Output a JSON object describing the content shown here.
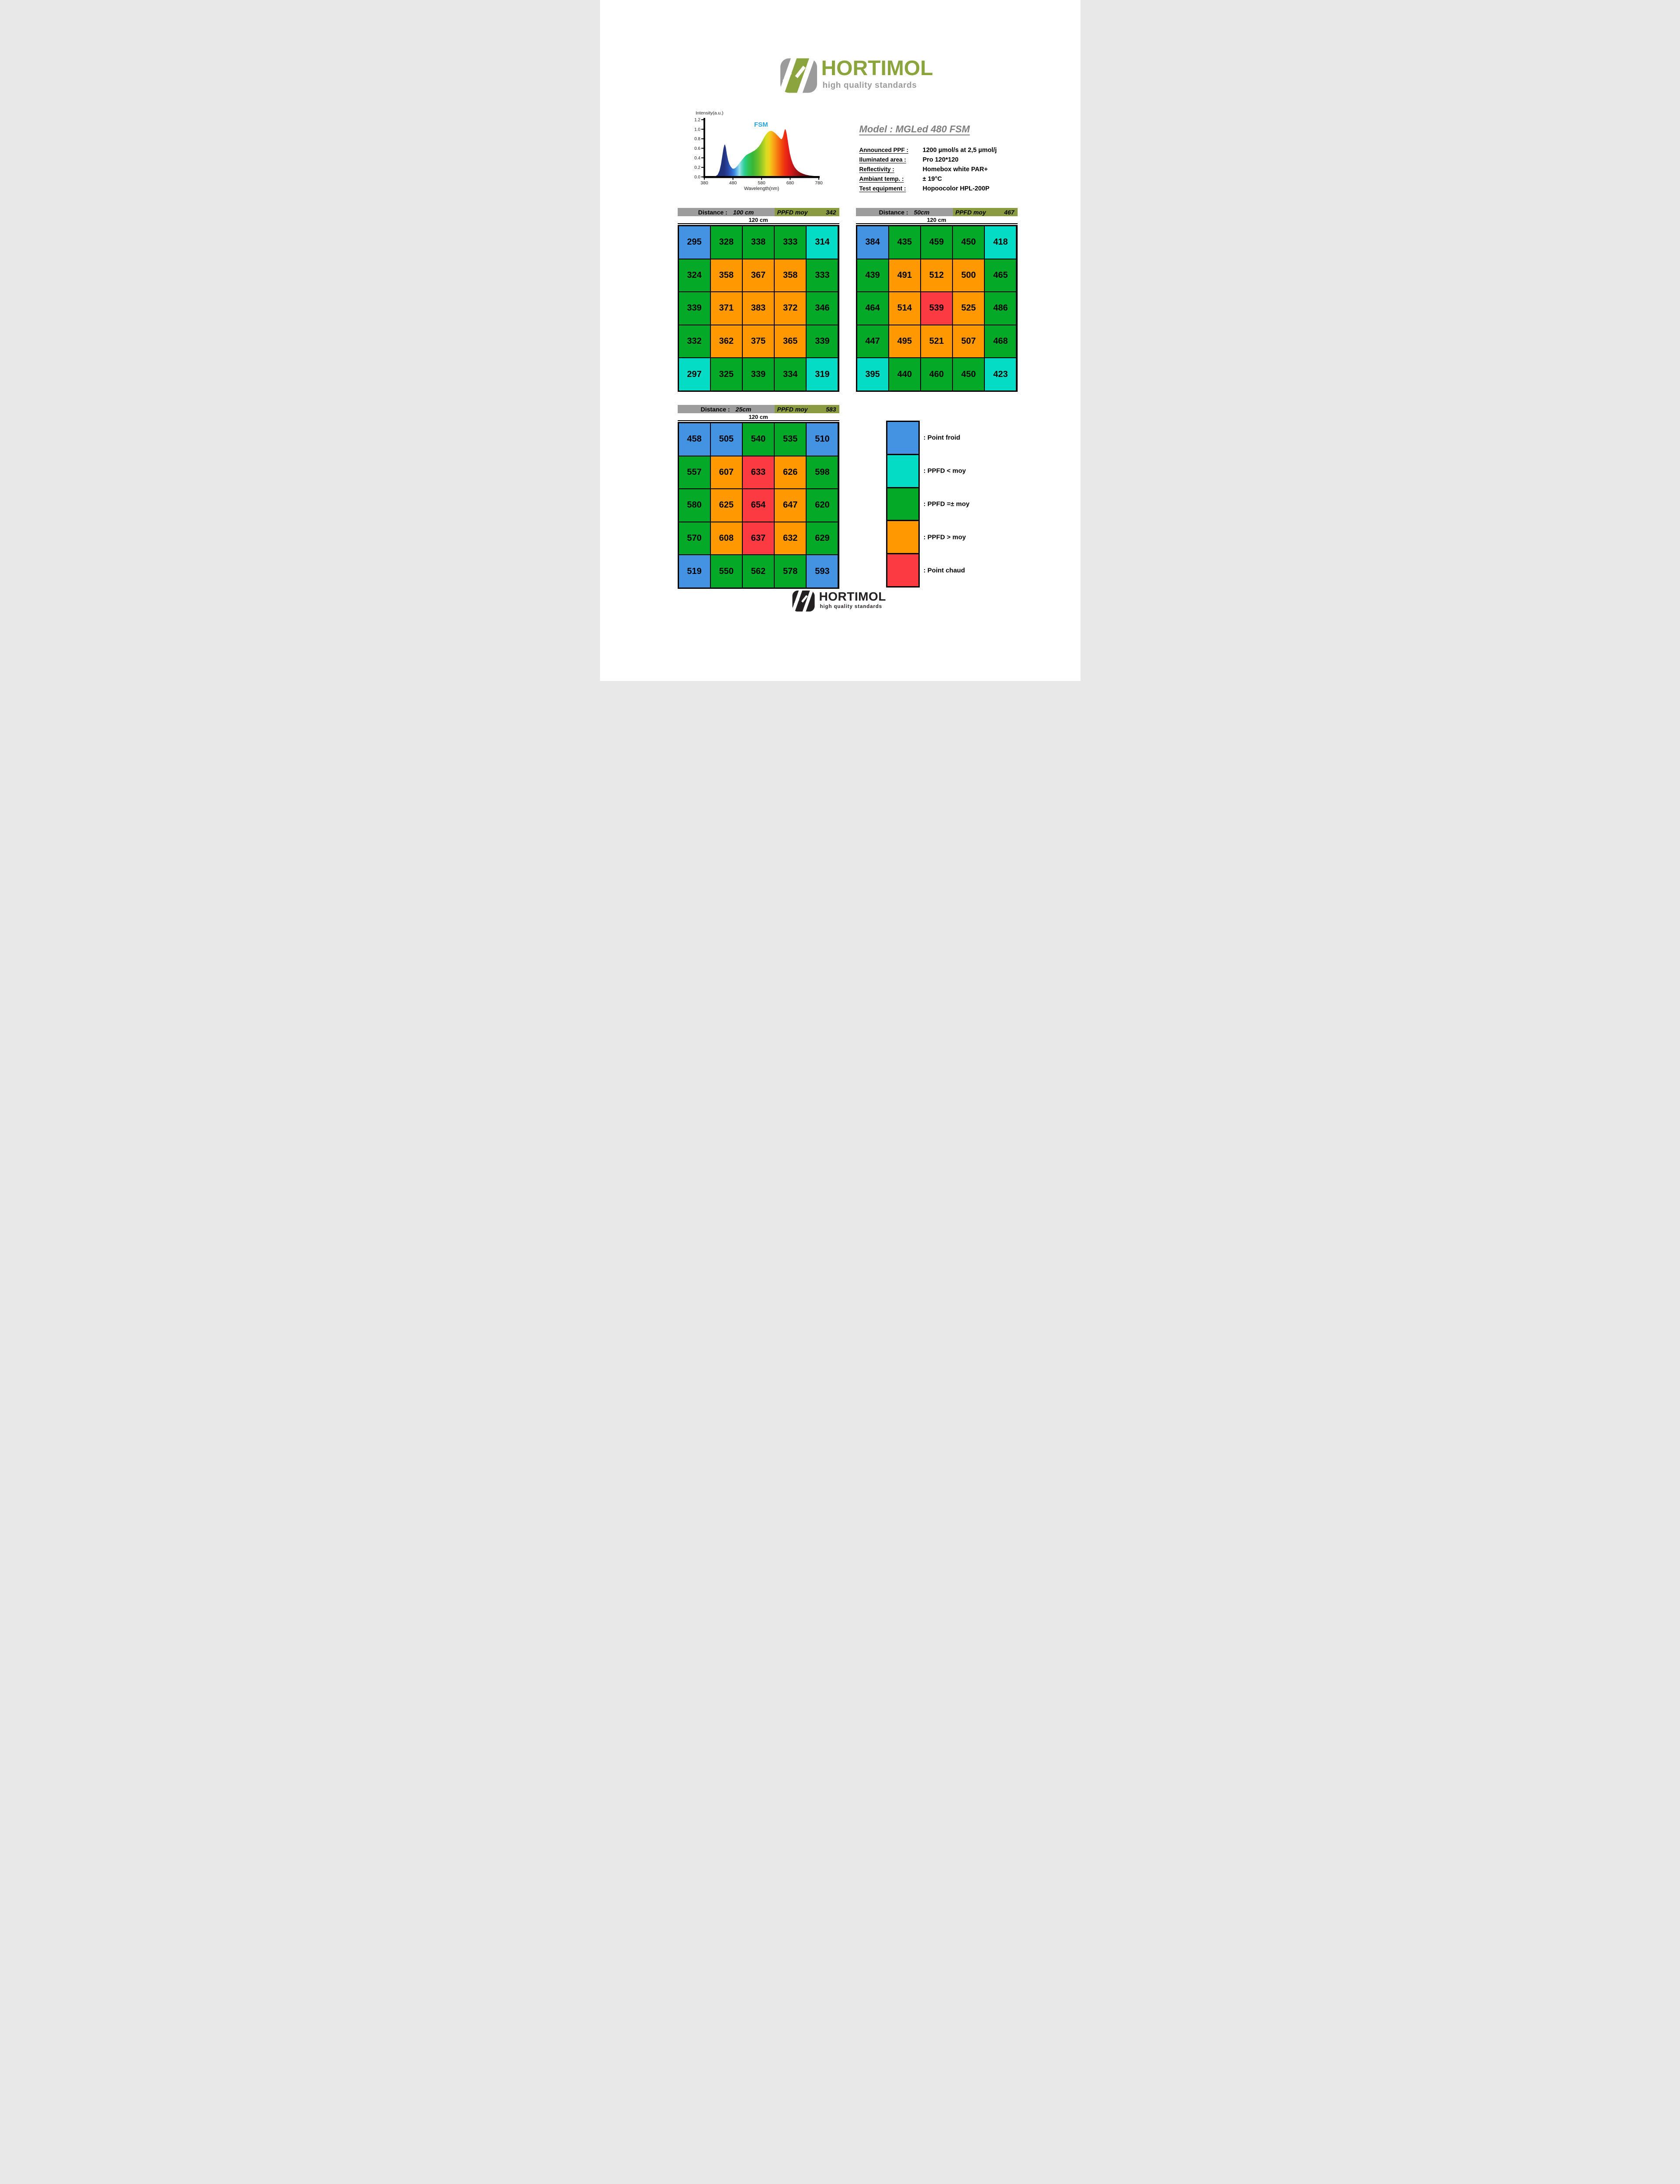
{
  "brand": {
    "name": "HORTIMOL",
    "tagline": "high quality standards"
  },
  "colors": {
    "brandGreen": "#8CA43D",
    "brandGray": "#9B9B9B",
    "dark": "#232021",
    "hdrGray": "#9D9D9D",
    "hdrOlive": "#8A9B41",
    "cold": "#4493E3",
    "below": "#04DCC5",
    "avg": "#05A928",
    "above": "#FF9801",
    "hot": "#FB3A42"
  },
  "model": {
    "label": "Model :",
    "value": "MGLed 480 FSM"
  },
  "specs": [
    {
      "label": "Announced PPF :",
      "value": "1200 µmol/s at 2,5 µmol/j"
    },
    {
      "label": "Iluminated area :",
      "value": "Pro 120*120"
    },
    {
      "label": "Reflectivity :",
      "value": "Homebox white PAR+"
    },
    {
      "label": "Ambiant temp. :",
      "value": "± 19°C"
    },
    {
      "label": "Test equipment :",
      "value": "Hopoocolor HPL-200P"
    }
  ],
  "chart_data": {
    "type": "area",
    "title": "FSM",
    "title_color": "#29A3DC",
    "ylabel": "Intensity(a.u.)",
    "xlabel": "Wavelength(nm)",
    "xlim": [
      380,
      780
    ],
    "ylim": [
      0,
      1.2
    ],
    "x_ticks": [
      380,
      480,
      580,
      680,
      780
    ],
    "y_ticks": [
      0.0,
      0.2,
      0.4,
      0.6,
      0.8,
      1.0,
      1.2
    ],
    "grid": "off",
    "series": [
      {
        "name": "FSM spectrum",
        "points": [
          [
            413,
            0.004
          ],
          [
            420,
            0.015
          ],
          [
            427,
            0.05
          ],
          [
            433,
            0.13
          ],
          [
            438,
            0.26
          ],
          [
            443,
            0.45
          ],
          [
            447,
            0.6
          ],
          [
            450,
            0.67
          ],
          [
            452,
            0.68
          ],
          [
            455,
            0.62
          ],
          [
            459,
            0.47
          ],
          [
            463,
            0.35
          ],
          [
            468,
            0.26
          ],
          [
            473,
            0.21
          ],
          [
            478,
            0.175
          ],
          [
            483,
            0.17
          ],
          [
            489,
            0.19
          ],
          [
            496,
            0.235
          ],
          [
            504,
            0.3
          ],
          [
            512,
            0.36
          ],
          [
            520,
            0.42
          ],
          [
            527,
            0.46
          ],
          [
            533,
            0.48
          ],
          [
            541,
            0.505
          ],
          [
            549,
            0.53
          ],
          [
            556,
            0.555
          ],
          [
            563,
            0.59
          ],
          [
            570,
            0.635
          ],
          [
            577,
            0.695
          ],
          [
            584,
            0.77
          ],
          [
            591,
            0.85
          ],
          [
            598,
            0.91
          ],
          [
            604,
            0.945
          ],
          [
            610,
            0.965
          ],
          [
            615,
            0.965
          ],
          [
            620,
            0.95
          ],
          [
            626,
            0.925
          ],
          [
            632,
            0.89
          ],
          [
            638,
            0.855
          ],
          [
            643,
            0.82
          ],
          [
            647,
            0.795
          ],
          [
            650,
            0.79
          ],
          [
            653,
            0.815
          ],
          [
            656,
            0.87
          ],
          [
            659,
            0.945
          ],
          [
            661,
            0.99
          ],
          [
            663,
            1.0
          ],
          [
            665,
            0.975
          ],
          [
            668,
            0.9
          ],
          [
            671,
            0.78
          ],
          [
            675,
            0.63
          ],
          [
            679,
            0.49
          ],
          [
            684,
            0.37
          ],
          [
            689,
            0.28
          ],
          [
            695,
            0.21
          ],
          [
            701,
            0.16
          ],
          [
            708,
            0.12
          ],
          [
            716,
            0.09
          ],
          [
            725,
            0.065
          ],
          [
            735,
            0.045
          ],
          [
            747,
            0.03
          ],
          [
            760,
            0.02
          ],
          [
            780,
            0.012
          ]
        ]
      }
    ],
    "gradient": [
      [
        0,
        "#1c2f80"
      ],
      [
        0.1,
        "#22327f"
      ],
      [
        0.14,
        "#2a4aa8"
      ],
      [
        0.17,
        "#2f66cc"
      ],
      [
        0.195,
        "#3a86dc"
      ],
      [
        0.22,
        "#5fb6e8"
      ],
      [
        0.245,
        "#9fe2e8"
      ],
      [
        0.265,
        "#5fd8c0"
      ],
      [
        0.29,
        "#2fcf96"
      ],
      [
        0.33,
        "#2fc257"
      ],
      [
        0.37,
        "#37b637"
      ],
      [
        0.42,
        "#66bf2b"
      ],
      [
        0.46,
        "#9ccb25"
      ],
      [
        0.5,
        "#d8dc20"
      ],
      [
        0.53,
        "#f0d01c"
      ],
      [
        0.56,
        "#f7ae16"
      ],
      [
        0.59,
        "#f88c13"
      ],
      [
        0.62,
        "#f66a10"
      ],
      [
        0.65,
        "#f2480e"
      ],
      [
        0.68,
        "#ec2c12"
      ],
      [
        0.705,
        "#e61e16"
      ],
      [
        0.75,
        "#c4181a"
      ],
      [
        0.8,
        "#9a1114"
      ],
      [
        0.86,
        "#6b0b0e"
      ],
      [
        0.93,
        "#450607"
      ],
      [
        1,
        "#2e0405"
      ]
    ]
  },
  "grids": [
    {
      "distance_label": "Distance :",
      "distance_value": "100 cm",
      "ppfd_label": "PPFD moy",
      "ppfd_avg": "342",
      "width_label": "120 cm",
      "values": [
        [
          295,
          328,
          338,
          333,
          314
        ],
        [
          324,
          358,
          367,
          358,
          333
        ],
        [
          339,
          371,
          383,
          372,
          346
        ],
        [
          332,
          362,
          375,
          365,
          339
        ],
        [
          297,
          325,
          339,
          334,
          319
        ]
      ],
      "classes": [
        [
          "cold",
          "avg",
          "avg",
          "avg",
          "below"
        ],
        [
          "avg",
          "above",
          "above",
          "above",
          "avg"
        ],
        [
          "avg",
          "above",
          "above",
          "above",
          "avg"
        ],
        [
          "avg",
          "above",
          "above",
          "above",
          "avg"
        ],
        [
          "below",
          "avg",
          "avg",
          "avg",
          "below"
        ]
      ]
    },
    {
      "distance_label": "Distance :",
      "distance_value": "50cm",
      "ppfd_label": "PPFD moy",
      "ppfd_avg": "467",
      "width_label": "120 cm",
      "values": [
        [
          384,
          435,
          459,
          450,
          418
        ],
        [
          439,
          491,
          512,
          500,
          465
        ],
        [
          464,
          514,
          539,
          525,
          486
        ],
        [
          447,
          495,
          521,
          507,
          468
        ],
        [
          395,
          440,
          460,
          450,
          423
        ]
      ],
      "classes": [
        [
          "cold",
          "avg",
          "avg",
          "avg",
          "below"
        ],
        [
          "avg",
          "above",
          "above",
          "above",
          "avg"
        ],
        [
          "avg",
          "above",
          "hot",
          "above",
          "avg"
        ],
        [
          "avg",
          "above",
          "above",
          "above",
          "avg"
        ],
        [
          "below",
          "avg",
          "avg",
          "avg",
          "below"
        ]
      ]
    },
    {
      "distance_label": "Distance :",
      "distance_value": "25cm",
      "ppfd_label": "PPFD moy",
      "ppfd_avg": "583",
      "width_label": "120 cm",
      "values": [
        [
          458,
          505,
          540,
          535,
          510
        ],
        [
          557,
          607,
          633,
          626,
          598
        ],
        [
          580,
          625,
          654,
          647,
          620
        ],
        [
          570,
          608,
          637,
          632,
          629
        ],
        [
          519,
          550,
          562,
          578,
          593
        ]
      ],
      "classes": [
        [
          "cold",
          "cold",
          "avg",
          "avg",
          "cold"
        ],
        [
          "avg",
          "above",
          "hot",
          "above",
          "avg"
        ],
        [
          "avg",
          "above",
          "hot",
          "above",
          "avg"
        ],
        [
          "avg",
          "above",
          "hot",
          "above",
          "avg"
        ],
        [
          "cold",
          "avg",
          "avg",
          "avg",
          "cold"
        ]
      ]
    }
  ],
  "legend": {
    "items": [
      {
        "key": "cold",
        "label": ": Point froid"
      },
      {
        "key": "below",
        "label": ": PPFD < moy"
      },
      {
        "key": "avg",
        "label": ": PPFD =± moy"
      },
      {
        "key": "above",
        "label": ": PPFD > moy"
      },
      {
        "key": "hot",
        "label": ": Point chaud"
      }
    ]
  }
}
